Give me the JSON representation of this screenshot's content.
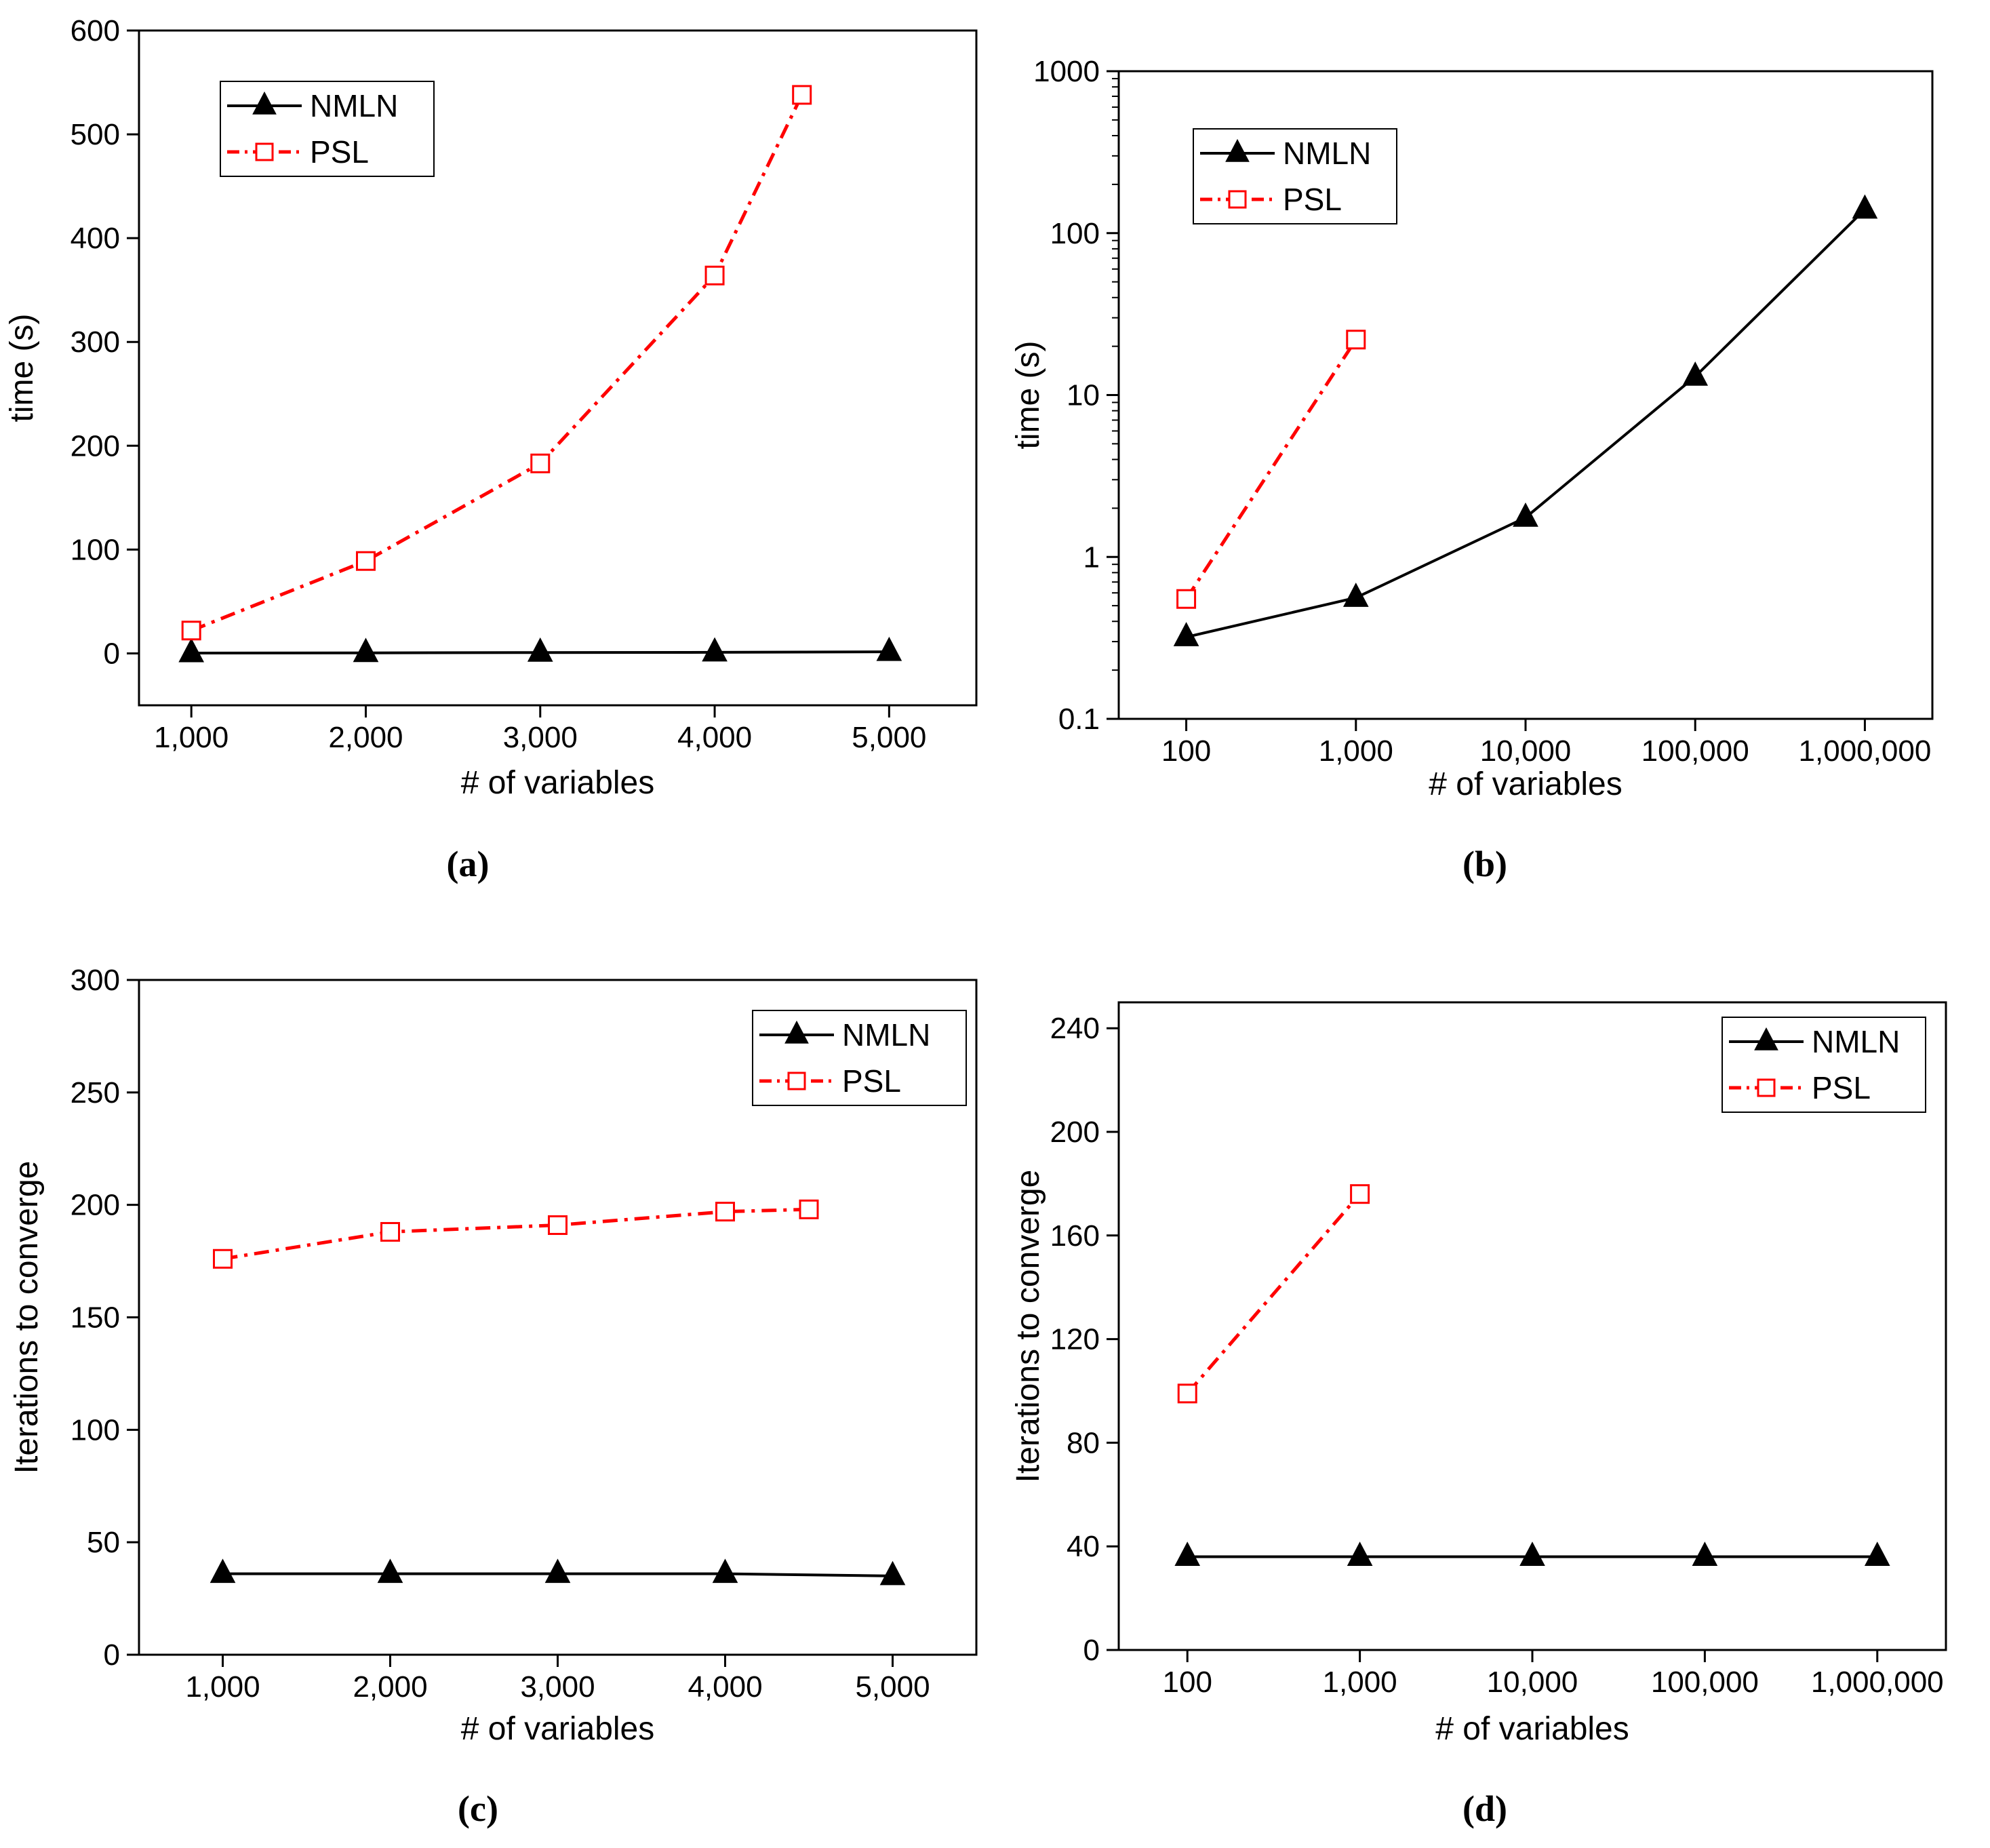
{
  "chart_data": [
    {
      "panel": "a",
      "caption": "(a)",
      "type": "line",
      "xscale": "linear",
      "yscale": "linear",
      "xlabel": "# of variables",
      "ylabel": "time (s)",
      "xlim": [
        700,
        5500
      ],
      "ylim": [
        -50,
        600
      ],
      "xticks": [
        1000,
        2000,
        3000,
        4000,
        5000
      ],
      "xtick_labels": [
        "1,000",
        "2,000",
        "3,000",
        "4,000",
        "5,000"
      ],
      "yticks": [
        0,
        100,
        200,
        300,
        400,
        500,
        600
      ],
      "ytick_labels": [
        "0",
        "100",
        "200",
        "300",
        "400",
        "500",
        "600"
      ],
      "legend_position": "top-left",
      "series": [
        {
          "name": "NMLN",
          "color": "#000000",
          "marker": "triangle",
          "line": "solid",
          "x": [
            1000,
            2000,
            3000,
            4000,
            5000
          ],
          "y": [
            0.3,
            0.5,
            0.8,
            1.0,
            1.5
          ]
        },
        {
          "name": "PSL",
          "color": "#ff0000",
          "marker": "square-open",
          "line": "dashdot",
          "x": [
            1000,
            2000,
            3000,
            4000,
            4500
          ],
          "y": [
            22,
            89,
            183,
            364,
            538
          ]
        }
      ]
    },
    {
      "panel": "b",
      "caption": "(b)",
      "type": "line",
      "xscale": "log",
      "yscale": "log",
      "xlabel": "# of variables",
      "ylabel": "time (s)",
      "xlim": [
        40,
        2500000
      ],
      "ylim": [
        0.1,
        1000
      ],
      "xticks": [
        100,
        1000,
        10000,
        100000,
        1000000
      ],
      "xtick_labels": [
        "100",
        "1,000",
        "10,000",
        "100,000",
        "1,000,000"
      ],
      "yticks": [
        0.1,
        1,
        10,
        100,
        1000
      ],
      "ytick_labels": [
        "0.1",
        "1",
        "10",
        "100",
        "1000"
      ],
      "legend_position": "top-left",
      "series": [
        {
          "name": "NMLN",
          "color": "#000000",
          "marker": "triangle",
          "line": "solid",
          "x": [
            100,
            1000,
            10000,
            100000,
            1000000
          ],
          "y": [
            0.32,
            0.56,
            1.75,
            13,
            140
          ]
        },
        {
          "name": "PSL",
          "color": "#ff0000",
          "marker": "square-open",
          "line": "dashdot",
          "x": [
            100,
            1000
          ],
          "y": [
            0.55,
            22
          ]
        }
      ]
    },
    {
      "panel": "c",
      "caption": "(c)",
      "type": "line",
      "xscale": "linear",
      "yscale": "linear",
      "xlabel": "# of variables",
      "ylabel": "Iterations to converge",
      "xlim": [
        500,
        5500
      ],
      "ylim": [
        0,
        300
      ],
      "xticks": [
        1000,
        2000,
        3000,
        4000,
        5000
      ],
      "xtick_labels": [
        "1,000",
        "2,000",
        "3,000",
        "4,000",
        "5,000"
      ],
      "yticks": [
        0,
        50,
        100,
        150,
        200,
        250,
        300
      ],
      "ytick_labels": [
        "0",
        "50",
        "100",
        "150",
        "200",
        "250",
        "300"
      ],
      "legend_position": "top-right",
      "series": [
        {
          "name": "NMLN",
          "color": "#000000",
          "marker": "triangle",
          "line": "solid",
          "x": [
            1000,
            2000,
            3000,
            4000,
            5000
          ],
          "y": [
            36,
            36,
            36,
            36,
            35
          ]
        },
        {
          "name": "PSL",
          "color": "#ff0000",
          "marker": "square-open",
          "line": "dashdot",
          "x": [
            1000,
            2000,
            3000,
            4000,
            4500
          ],
          "y": [
            176,
            188,
            191,
            197,
            198
          ]
        }
      ]
    },
    {
      "panel": "d",
      "caption": "(d)",
      "type": "line",
      "xscale": "log",
      "yscale": "linear",
      "xlabel": "# of variables",
      "ylabel": "Iterations to converge",
      "xlim": [
        40,
        2500000
      ],
      "ylim": [
        0,
        250
      ],
      "xticks": [
        100,
        1000,
        10000,
        100000,
        1000000
      ],
      "xtick_labels": [
        "100",
        "1,000",
        "10,000",
        "100,000",
        "1,000,000"
      ],
      "yticks": [
        0,
        40,
        80,
        120,
        160,
        200,
        240
      ],
      "ytick_labels": [
        "0",
        "40",
        "80",
        "120",
        "160",
        "200",
        "240"
      ],
      "legend_position": "top-right",
      "series": [
        {
          "name": "NMLN",
          "color": "#000000",
          "marker": "triangle",
          "line": "solid",
          "x": [
            100,
            1000,
            10000,
            100000,
            1000000
          ],
          "y": [
            36,
            36,
            36,
            36,
            36
          ]
        },
        {
          "name": "PSL",
          "color": "#ff0000",
          "marker": "square-open",
          "line": "dashdot",
          "x": [
            100,
            1000
          ],
          "y": [
            99,
            176
          ]
        }
      ]
    }
  ]
}
